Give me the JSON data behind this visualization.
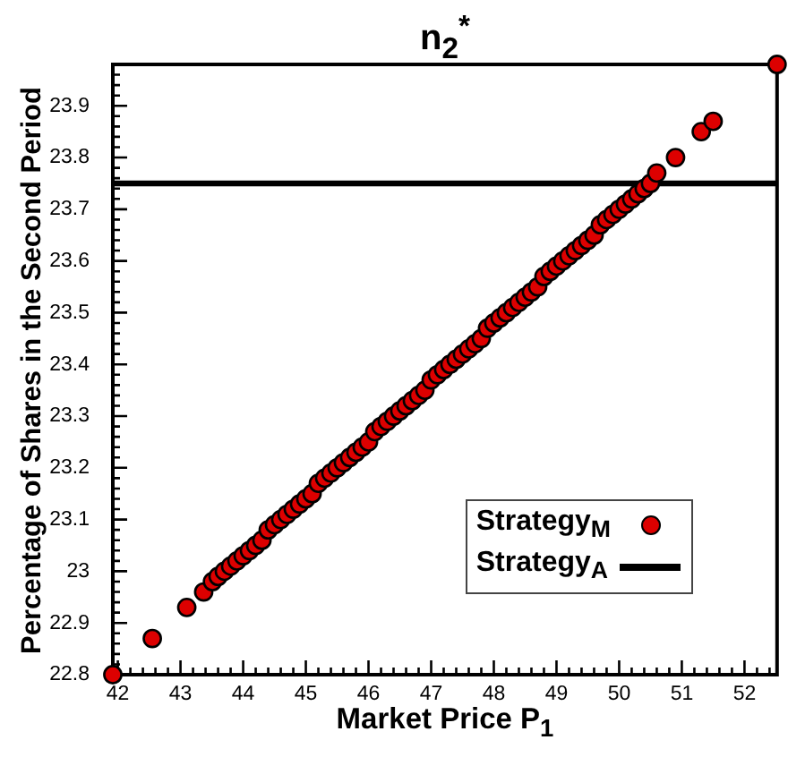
{
  "chart_data": {
    "type": "scatter",
    "title": "n$_{2}$$^{*}$",
    "xlabel": "Market Price P$_{1}$",
    "ylabel": "Percentage of Shares in the Second Period",
    "xlim": [
      41.92,
      52.52
    ],
    "ylim": [
      22.8,
      23.98
    ],
    "xticks": [
      42,
      {
        "value": 42.2,
        "label": null
      },
      {
        "value": 42.4,
        "label": null
      },
      {
        "value": 42.6,
        "label": null
      },
      {
        "value": 42.8,
        "label": null
      },
      43,
      {
        "value": 43.2,
        "label": null
      },
      {
        "value": 43.4,
        "label": null
      },
      {
        "value": 43.6,
        "label": null
      },
      {
        "value": 43.8,
        "label": null
      },
      44,
      {
        "value": 44.2,
        "label": null
      },
      {
        "value": 44.4,
        "label": null
      },
      {
        "value": 44.6,
        "label": null
      },
      {
        "value": 44.8,
        "label": null
      },
      45,
      {
        "value": 45.2,
        "label": null
      },
      {
        "value": 45.4,
        "label": null
      },
      {
        "value": 45.6,
        "label": null
      },
      {
        "value": 45.8,
        "label": null
      },
      46,
      {
        "value": 46.2,
        "label": null
      },
      {
        "value": 46.4,
        "label": null
      },
      {
        "value": 46.6,
        "label": null
      },
      {
        "value": 46.8,
        "label": null
      },
      47,
      {
        "value": 47.2,
        "label": null
      },
      {
        "value": 47.4,
        "label": null
      },
      {
        "value": 47.6,
        "label": null
      },
      {
        "value": 47.8,
        "label": null
      },
      48,
      {
        "value": 48.2,
        "label": null
      },
      {
        "value": 48.4,
        "label": null
      },
      {
        "value": 48.6,
        "label": null
      },
      {
        "value": 48.8,
        "label": null
      },
      49,
      {
        "value": 49.2,
        "label": null
      },
      {
        "value": 49.4,
        "label": null
      },
      {
        "value": 49.6,
        "label": null
      },
      {
        "value": 49.8,
        "label": null
      },
      50,
      {
        "value": 50.2,
        "label": null
      },
      {
        "value": 50.4,
        "label": null
      },
      {
        "value": 50.6,
        "label": null
      },
      {
        "value": 50.8,
        "label": null
      },
      51,
      {
        "value": 51.2,
        "label": null
      },
      {
        "value": 51.4,
        "label": null
      },
      {
        "value": 51.6,
        "label": null
      },
      {
        "value": 51.8,
        "label": null
      },
      52,
      {
        "value": 52.2,
        "label": null
      },
      {
        "value": 52.4,
        "label": null
      }
    ],
    "yticks": [
      22.8,
      {
        "value": 22.82,
        "label": null
      },
      {
        "value": 22.84,
        "label": null
      },
      {
        "value": 22.86,
        "label": null
      },
      {
        "value": 22.88,
        "label": null
      },
      22.9,
      {
        "value": 22.92,
        "label": null
      },
      {
        "value": 22.94,
        "label": null
      },
      {
        "value": 22.96,
        "label": null
      },
      {
        "value": 22.98,
        "label": null
      },
      23,
      {
        "value": 23.02,
        "label": null
      },
      {
        "value": 23.04,
        "label": null
      },
      {
        "value": 23.06,
        "label": null
      },
      {
        "value": 23.08,
        "label": null
      },
      23.1,
      {
        "value": 23.12,
        "label": null
      },
      {
        "value": 23.14,
        "label": null
      },
      {
        "value": 23.16,
        "label": null
      },
      {
        "value": 23.18,
        "label": null
      },
      23.2,
      {
        "value": 23.22,
        "label": null
      },
      {
        "value": 23.24,
        "label": null
      },
      {
        "value": 23.26,
        "label": null
      },
      {
        "value": 23.28,
        "label": null
      },
      23.3,
      {
        "value": 23.32,
        "label": null
      },
      {
        "value": 23.34,
        "label": null
      },
      {
        "value": 23.36,
        "label": null
      },
      {
        "value": 23.38,
        "label": null
      },
      23.4,
      {
        "value": 23.42,
        "label": null
      },
      {
        "value": 23.44,
        "label": null
      },
      {
        "value": 23.46,
        "label": null
      },
      {
        "value": 23.48,
        "label": null
      },
      23.5,
      {
        "value": 23.52,
        "label": null
      },
      {
        "value": 23.54,
        "label": null
      },
      {
        "value": 23.56,
        "label": null
      },
      {
        "value": 23.58,
        "label": null
      },
      23.6,
      {
        "value": 23.62,
        "label": null
      },
      {
        "value": 23.64,
        "label": null
      },
      {
        "value": 23.66,
        "label": null
      },
      {
        "value": 23.68,
        "label": null
      },
      23.7,
      {
        "value": 23.72,
        "label": null
      },
      {
        "value": 23.74,
        "label": null
      },
      {
        "value": 23.76,
        "label": null
      },
      {
        "value": 23.78,
        "label": null
      },
      23.8,
      {
        "value": 23.82,
        "label": null
      },
      {
        "value": 23.84,
        "label": null
      },
      {
        "value": 23.86,
        "label": null
      },
      {
        "value": 23.88,
        "label": null
      },
      23.9,
      {
        "value": 23.92,
        "label": null
      },
      {
        "value": 23.94,
        "label": null
      },
      {
        "value": 23.96,
        "label": null
      },
      {
        "value": 23.98,
        "label": null
      }
    ],
    "legend": "bottom right",
    "series": [
      {
        "name": "Strategy$_{M}$",
        "marker": "circle",
        "color": "#dd0000",
        "x": [
          41.92,
          42.55,
          43.1,
          43.37,
          43.51,
          43.6,
          43.7,
          43.8,
          43.9,
          44,
          44.1,
          44.2,
          44.3,
          44.4,
          44.5,
          44.6,
          44.7,
          44.8,
          44.9,
          45,
          45.1,
          45.2,
          45.3,
          45.4,
          45.5,
          45.6,
          45.7,
          45.8,
          45.9,
          46,
          46.1,
          46.2,
          46.3,
          46.4,
          46.5,
          46.6,
          46.7,
          46.8,
          46.9,
          47,
          47.1,
          47.2,
          47.3,
          47.4,
          47.5,
          47.6,
          47.7,
          47.8,
          47.9,
          48,
          48.1,
          48.2,
          48.3,
          48.4,
          48.5,
          48.6,
          48.7,
          48.8,
          48.9,
          49,
          49.1,
          49.2,
          49.3,
          49.4,
          49.5,
          49.6,
          49.7,
          49.8,
          49.9,
          50,
          50.1,
          50.2,
          50.3,
          50.4,
          50.5,
          50.6,
          50.9,
          51.31,
          51.5,
          52.52
        ],
        "values": [
          22.8,
          22.87,
          22.93,
          22.96,
          22.98,
          22.99,
          23,
          23.01,
          23.02,
          23.03,
          23.04,
          23.05,
          23.06,
          23.08,
          23.09,
          23.1,
          23.11,
          23.12,
          23.13,
          23.14,
          23.15,
          23.17,
          23.18,
          23.19,
          23.2,
          23.21,
          23.22,
          23.23,
          23.24,
          23.25,
          23.27,
          23.28,
          23.29,
          23.3,
          23.31,
          23.32,
          23.33,
          23.34,
          23.35,
          23.37,
          23.38,
          23.39,
          23.4,
          23.41,
          23.42,
          23.43,
          23.44,
          23.45,
          23.47,
          23.48,
          23.49,
          23.5,
          23.51,
          23.52,
          23.53,
          23.54,
          23.55,
          23.57,
          23.58,
          23.59,
          23.6,
          23.61,
          23.62,
          23.63,
          23.64,
          23.65,
          23.67,
          23.68,
          23.69,
          23.7,
          23.71,
          23.72,
          23.73,
          23.74,
          23.75,
          23.77,
          23.8,
          23.85,
          23.87,
          23.98
        ]
      },
      {
        "name": "Strategy$_{A}$",
        "type": "line",
        "marker": "none",
        "color": "#000000",
        "x": [
          41.92,
          52.52
        ],
        "values": [
          23.75,
          23.75
        ]
      }
    ]
  }
}
